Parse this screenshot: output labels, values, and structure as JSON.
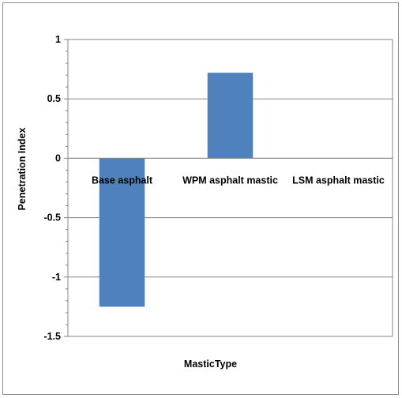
{
  "chart_data": {
    "type": "bar",
    "categories": [
      "Base asphalt",
      "WPM asphalt mastic",
      "LSM asphalt mastic"
    ],
    "values": [
      -1.25,
      0.72,
      0
    ],
    "title": "",
    "xlabel": "MasticType",
    "ylabel": "Penetration Index",
    "ylim": [
      -1.5,
      1
    ],
    "yticks": [
      1,
      0.5,
      0,
      -0.5,
      -1,
      -1.5
    ],
    "ytick_labels": [
      "1",
      "0.5",
      "0",
      "-0.5",
      "-1",
      "-1.5"
    ],
    "grid": true,
    "legend": "none",
    "colors": {
      "bar": "#4f81bd",
      "grid": "#868686",
      "axis": "#868686"
    }
  }
}
